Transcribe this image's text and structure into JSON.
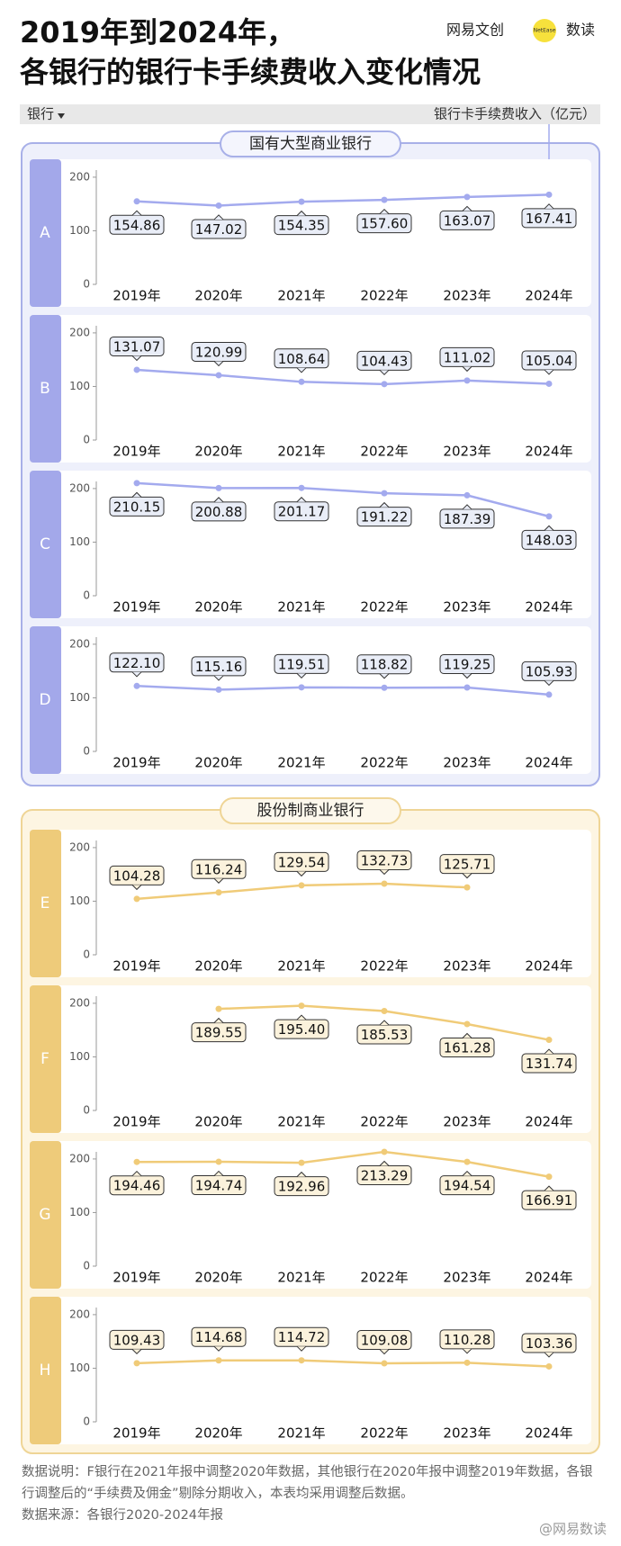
{
  "header": {
    "title": [
      "2019年到2024年，",
      "各银行的银行卡手续费收入变化情况"
    ],
    "logo": "网易文创",
    "logo_badge": "NetEase",
    "logo_section": "数读",
    "row_label": "银行",
    "value_label": "银行卡手续费收入（亿元）"
  },
  "groups": [
    "国有大型商业银行",
    "股份制商业银行"
  ],
  "chart_data": [
    {
      "type": "line",
      "title": "A",
      "categories": [
        "2019年",
        "2020年",
        "2021年",
        "2022年",
        "2023年",
        "2024年"
      ],
      "values": [
        154.86,
        147.02,
        154.35,
        157.6,
        163.07,
        167.41
      ],
      "value_labels": [
        "154.86",
        "147.02",
        "154.35",
        "157.60",
        "163.07",
        "167.41"
      ],
      "color": "#a3aaee",
      "ylim": [
        0,
        220
      ],
      "yticks": [
        0,
        100,
        200
      ]
    },
    {
      "type": "line",
      "title": "B",
      "categories": [
        "2019年",
        "2020年",
        "2021年",
        "2022年",
        "2023年",
        "2024年"
      ],
      "values": [
        131.07,
        120.99,
        108.64,
        104.43,
        111.02,
        105.04
      ],
      "value_labels": [
        "131.07",
        "120.99",
        "108.64",
        "104.43",
        "111.02",
        "105.04"
      ],
      "color": "#a3aaee",
      "ylim": [
        0,
        220
      ],
      "yticks": [
        0,
        100,
        200
      ]
    },
    {
      "type": "line",
      "title": "C",
      "categories": [
        "2019年",
        "2020年",
        "2021年",
        "2022年",
        "2023年",
        "2024年"
      ],
      "values": [
        210.15,
        200.88,
        201.17,
        191.22,
        187.39,
        148.03
      ],
      "value_labels": [
        "210.15",
        "200.88",
        "201.17",
        "191.22",
        "187.39",
        "148.03"
      ],
      "color": "#a3aaee",
      "ylim": [
        0,
        220
      ],
      "yticks": [
        0,
        100,
        200
      ]
    },
    {
      "type": "line",
      "title": "D",
      "categories": [
        "2019年",
        "2020年",
        "2021年",
        "2022年",
        "2023年",
        "2024年"
      ],
      "values": [
        122.1,
        115.16,
        119.51,
        118.82,
        119.25,
        105.93
      ],
      "value_labels": [
        "122.10",
        "115.16",
        "119.51",
        "118.82",
        "119.25",
        "105.93"
      ],
      "color": "#a3aaee",
      "ylim": [
        0,
        220
      ],
      "yticks": [
        0,
        100,
        200
      ]
    },
    {
      "type": "line",
      "title": "E",
      "categories": [
        "2019年",
        "2020年",
        "2021年",
        "2022年",
        "2023年",
        "2024年"
      ],
      "values": [
        104.28,
        116.24,
        129.54,
        132.73,
        125.71,
        null
      ],
      "value_labels": [
        "104.28",
        "116.24",
        "129.54",
        "132.73",
        "125.71",
        null
      ],
      "color": "#f0cb78",
      "ylim": [
        0,
        220
      ],
      "yticks": [
        0,
        100,
        200
      ]
    },
    {
      "type": "line",
      "title": "F",
      "categories": [
        "2019年",
        "2020年",
        "2021年",
        "2022年",
        "2023年",
        "2024年"
      ],
      "values": [
        null,
        189.55,
        195.4,
        185.53,
        161.28,
        131.74
      ],
      "value_labels": [
        null,
        "189.55",
        "195.40",
        "185.53",
        "161.28",
        "131.74"
      ],
      "color": "#f0cb78",
      "ylim": [
        0,
        220
      ],
      "yticks": [
        0,
        100,
        200
      ]
    },
    {
      "type": "line",
      "title": "G",
      "categories": [
        "2019年",
        "2020年",
        "2021年",
        "2022年",
        "2023年",
        "2024年"
      ],
      "values": [
        194.46,
        194.74,
        192.96,
        213.29,
        194.54,
        166.91
      ],
      "value_labels": [
        "194.46",
        "194.74",
        "192.96",
        "213.29",
        "194.54",
        "166.91"
      ],
      "color": "#f0cb78",
      "ylim": [
        0,
        220
      ],
      "yticks": [
        0,
        100,
        200
      ]
    },
    {
      "type": "line",
      "title": "H",
      "categories": [
        "2019年",
        "2020年",
        "2021年",
        "2022年",
        "2023年",
        "2024年"
      ],
      "values": [
        109.43,
        114.68,
        114.72,
        109.08,
        110.28,
        103.36
      ],
      "value_labels": [
        "109.43",
        "114.68",
        "114.72",
        "109.08",
        "110.28",
        "103.36"
      ],
      "color": "#f0cb78",
      "ylim": [
        0,
        220
      ],
      "yticks": [
        0,
        100,
        200
      ]
    }
  ],
  "footer": {
    "notes": "数据说明：F银行在2021年报中调整2020年数据，其他银行在2020年报中调整2019年数据，各银行调整后的“手续费及佣金”剔除分期收入，本表均采用调整后数据。",
    "source": "数据来源：各银行2020-2024年报",
    "watermark": "@网易数读"
  }
}
